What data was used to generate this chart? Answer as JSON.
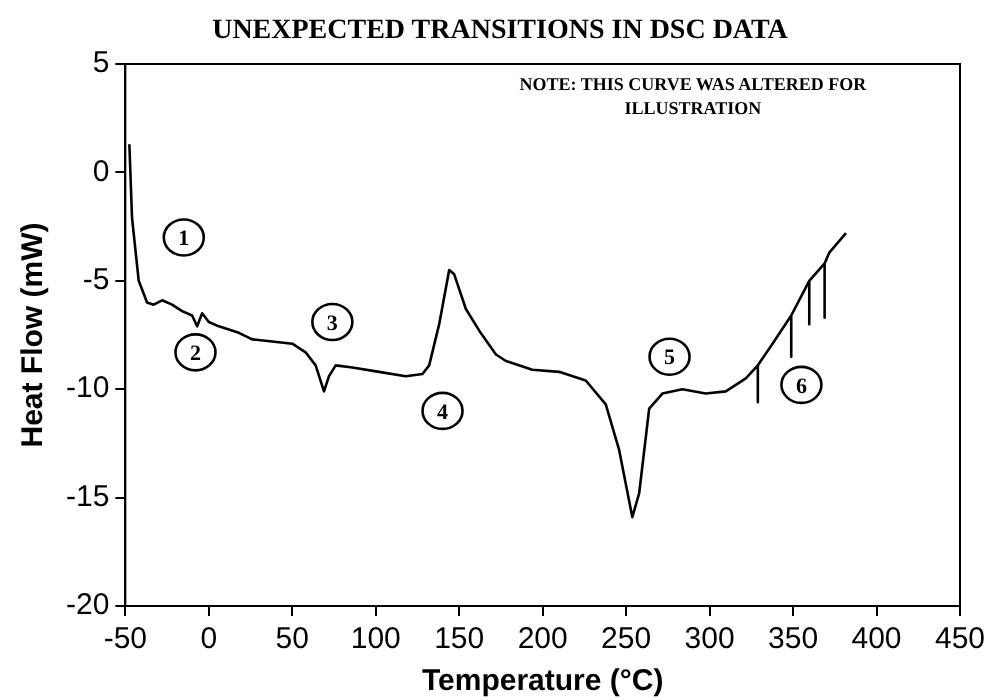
{
  "chart_data": {
    "type": "line",
    "title": "UNEXPECTED TRANSITIONS IN DSC DATA",
    "xlabel": "Temperature (°C)",
    "ylabel": "Heat Flow (mW)",
    "xlim": [
      -50,
      450
    ],
    "xticks": [
      -50,
      0,
      50,
      100,
      150,
      200,
      250,
      300,
      350,
      400,
      450
    ],
    "ylim": [
      -20,
      5
    ],
    "yticks": [
      -20,
      -15,
      -10,
      -5,
      0,
      5
    ],
    "grid": false,
    "legend": false,
    "marker": "none",
    "line_style": "solid",
    "series": [
      {
        "color": "#000000",
        "x": [
          -47.6,
          -46,
          -42,
          -37,
          -33,
          -28,
          -22,
          -16,
          -10,
          -7,
          -4,
          0,
          6,
          18,
          26,
          38,
          50,
          58,
          64,
          69,
          72,
          76,
          86,
          102,
          118,
          128,
          132,
          138,
          144,
          147,
          154,
          162,
          172,
          178,
          193.8,
          209.8,
          225.8,
          237.8,
          245.8,
          253.7,
          257.8,
          263.8,
          271.7,
          283.7,
          297.7,
          309.7,
          321.7,
          328.9,
          328.9,
          328.9,
          337.7,
          348.9,
          348.9,
          348.9,
          359.7,
          359.7,
          359.7,
          368.9,
          368.9,
          368.9,
          371.7,
          381.7
        ],
        "values": [
          1.3,
          -2.1,
          -5.0,
          -6.0,
          -6.1,
          -5.9,
          -6.1,
          -6.4,
          -6.6,
          -7.1,
          -6.5,
          -6.9,
          -7.1,
          -7.4,
          -7.7,
          -7.8,
          -7.9,
          -8.3,
          -8.9,
          -10.1,
          -9.4,
          -8.9,
          -9.0,
          -9.2,
          -9.4,
          -9.3,
          -8.9,
          -7.0,
          -4.5,
          -4.7,
          -6.3,
          -7.3,
          -8.4,
          -8.7,
          -9.1,
          -9.2,
          -9.6,
          -10.7,
          -12.8,
          -15.9,
          -14.8,
          -10.9,
          -10.2,
          -10.0,
          -10.2,
          -10.1,
          -9.5,
          -8.9,
          -10.6,
          -8.9,
          -7.9,
          -6.6,
          -8.5,
          -6.6,
          -5.0,
          -7.0,
          -5.0,
          -4.2,
          -6.7,
          -4.2,
          -3.7,
          -2.8
        ]
      }
    ],
    "annotations": [
      "NOTE: THIS CURVE WAS ALTERED FOR ILLUSTRATION",
      {
        "text": "1",
        "x": -15,
        "y": -3.0
      },
      {
        "text": "2",
        "x": -8,
        "y": -8.3
      },
      {
        "text": "3",
        "x": 74,
        "y": -6.9
      },
      {
        "text": "4",
        "x": 140,
        "y": -11.0
      },
      {
        "text": "5",
        "x": 276,
        "y": -8.5
      },
      {
        "text": "6",
        "x": 355,
        "y": -9.8
      }
    ]
  }
}
